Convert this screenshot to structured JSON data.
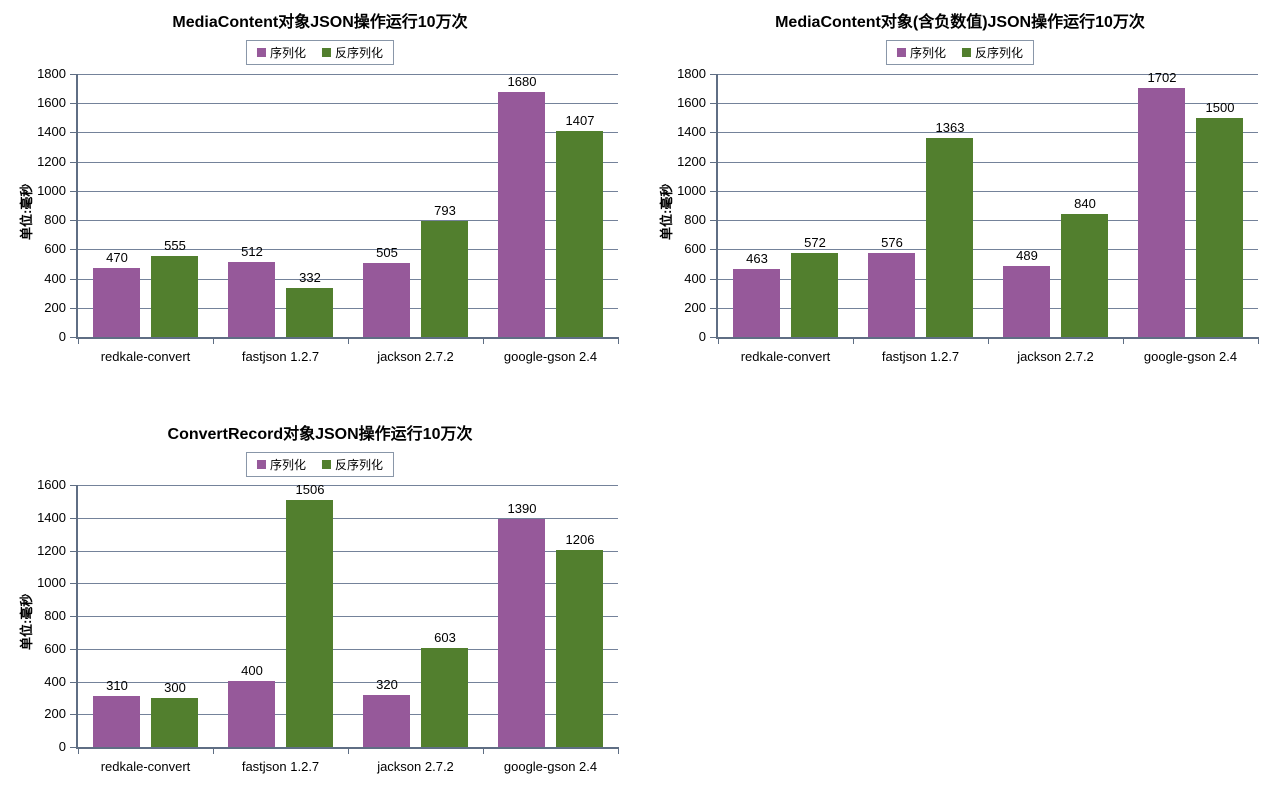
{
  "colors": {
    "serialize": "#96599A",
    "deserialize": "#527F2E",
    "gridline": "#74829A",
    "axis": "#5F6E84",
    "legend_border": "#8896A8",
    "text": "#000000",
    "background": "#ffffff"
  },
  "chart_data": [
    {
      "type": "bar",
      "title": "MediaContent对象JSON操作运行10万次",
      "ylabel": "单位:毫秒",
      "xlabel": "",
      "categories": [
        "redkale-convert",
        "fastjson 1.2.7",
        "jackson 2.7.2",
        "google-gson 2.4"
      ],
      "series": [
        {
          "name": "序列化",
          "color": "#96599A",
          "values": [
            470,
            512,
            505,
            1680
          ]
        },
        {
          "name": "反序列化",
          "color": "#527F2E",
          "values": [
            555,
            332,
            793,
            1407
          ]
        }
      ],
      "ylim": [
        0,
        1800
      ],
      "ystep": 200,
      "grid": true,
      "legend_position": "top",
      "data_labels": true
    },
    {
      "type": "bar",
      "title": "MediaContent对象(含负数值)JSON操作运行10万次",
      "ylabel": "单位:毫秒",
      "xlabel": "",
      "categories": [
        "redkale-convert",
        "fastjson 1.2.7",
        "jackson 2.7.2",
        "google-gson 2.4"
      ],
      "series": [
        {
          "name": "序列化",
          "color": "#96599A",
          "values": [
            463,
            576,
            489,
            1702
          ]
        },
        {
          "name": "反序列化",
          "color": "#527F2E",
          "values": [
            572,
            1363,
            840,
            1500
          ]
        }
      ],
      "ylim": [
        0,
        1800
      ],
      "ystep": 200,
      "grid": true,
      "legend_position": "top",
      "data_labels": true
    },
    {
      "type": "bar",
      "title": "ConvertRecord对象JSON操作运行10万次",
      "ylabel": "单位:毫秒",
      "xlabel": "",
      "categories": [
        "redkale-convert",
        "fastjson 1.2.7",
        "jackson 2.7.2",
        "google-gson 2.4"
      ],
      "series": [
        {
          "name": "序列化",
          "color": "#96599A",
          "values": [
            310,
            400,
            320,
            1390
          ]
        },
        {
          "name": "反序列化",
          "color": "#527F2E",
          "values": [
            300,
            1506,
            603,
            1206
          ]
        }
      ],
      "ylim": [
        0,
        1600
      ],
      "ystep": 200,
      "grid": true,
      "legend_position": "top",
      "data_labels": true
    }
  ]
}
